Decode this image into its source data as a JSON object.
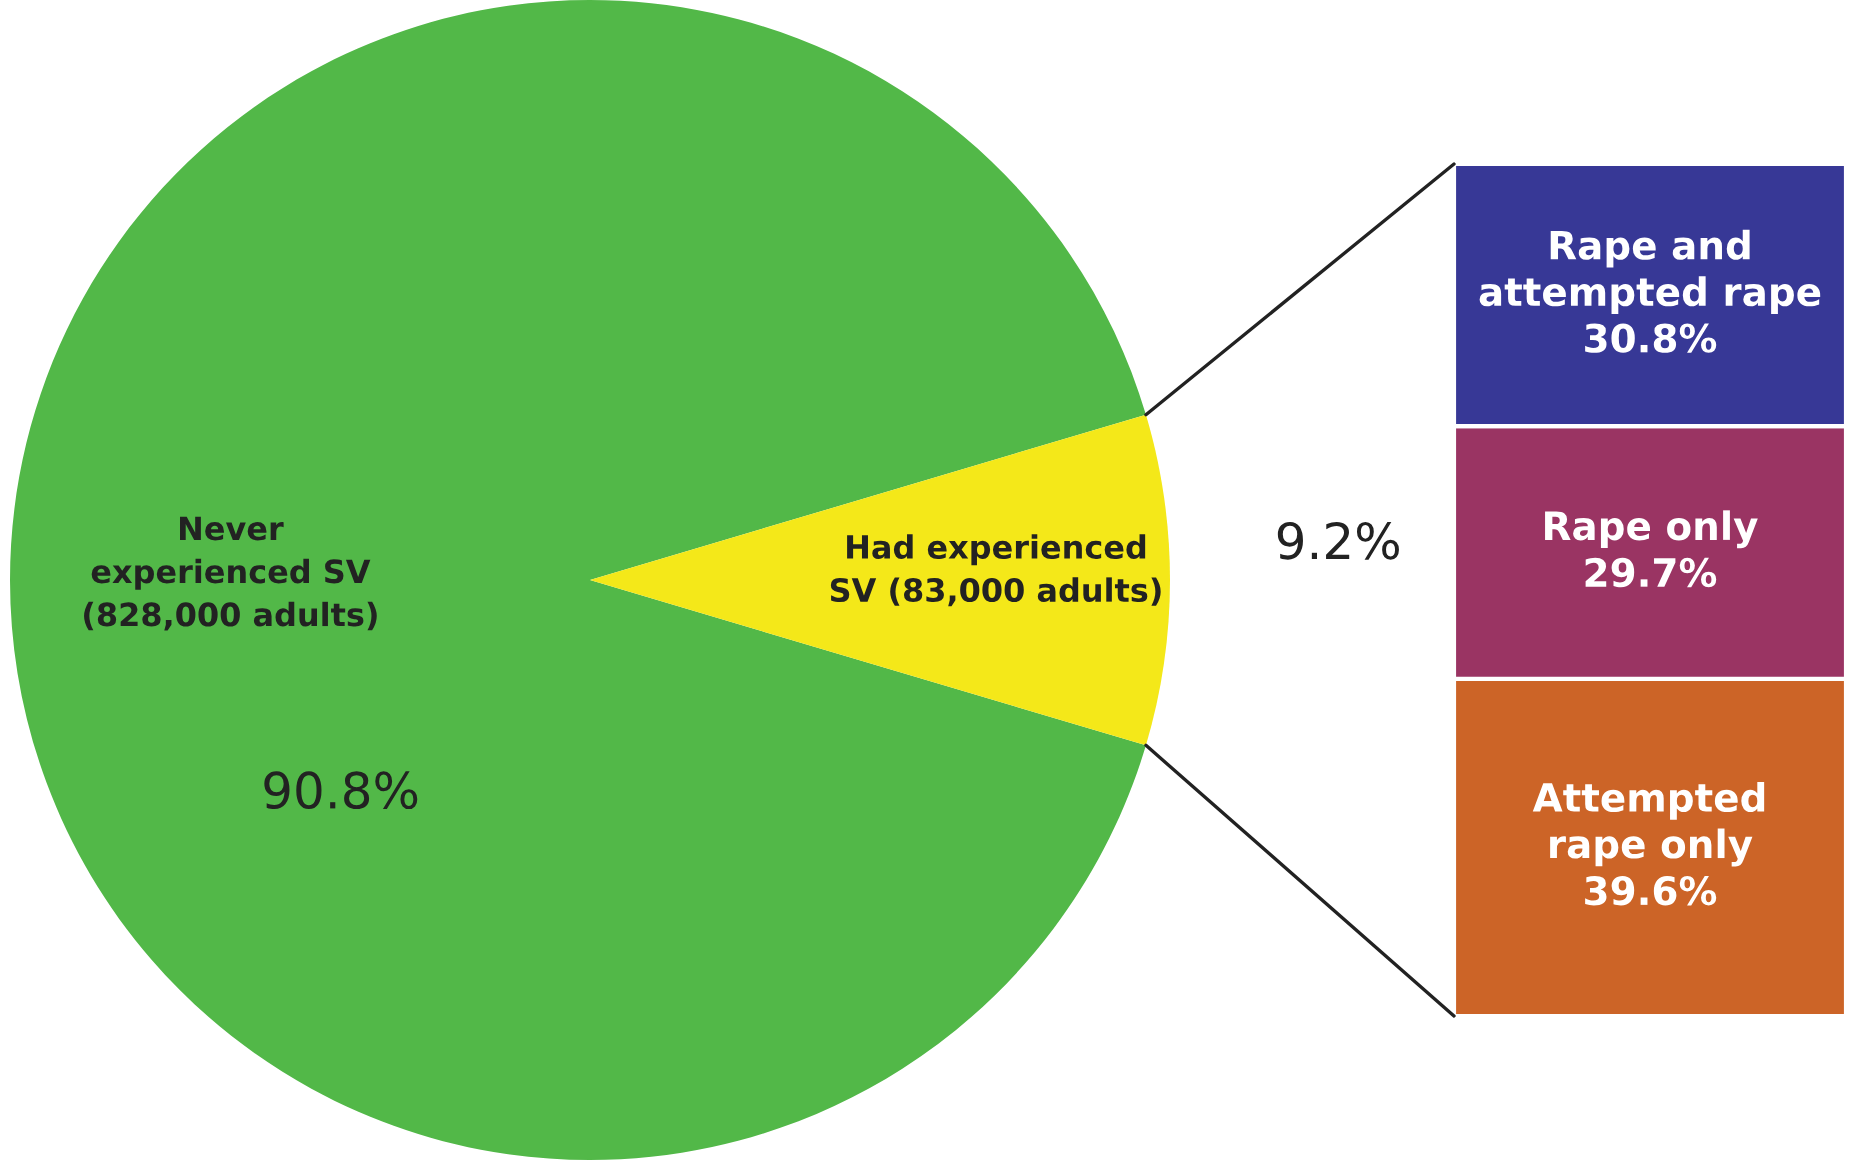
{
  "chart_data": [
    {
      "type": "pie",
      "categories": [
        "Never\nexperienced SV\n(828,000 adults)",
        "Had experienced\nSV (83,000 adults)"
      ],
      "values": [
        90.8,
        9.2
      ],
      "colors": [
        "#52b848",
        "#f4e819"
      ],
      "value_labels": [
        "90.8%",
        "9.2%"
      ]
    },
    {
      "type": "bar",
      "stacked": true,
      "categories": [
        null
      ],
      "series": [
        {
          "name": "Attempted\nrape only",
          "color": "#cc6427",
          "values": [
            39.6
          ],
          "value_labels": [
            "39.6%"
          ]
        },
        {
          "name": "Rape only",
          "color": "#9a3463",
          "values": [
            29.7
          ],
          "value_labels": [
            "29.7%"
          ]
        },
        {
          "name": "Rape and\nattempted rape",
          "color": "#373896",
          "values": [
            30.8
          ],
          "value_labels": [
            "30.8%"
          ]
        }
      ]
    }
  ]
}
